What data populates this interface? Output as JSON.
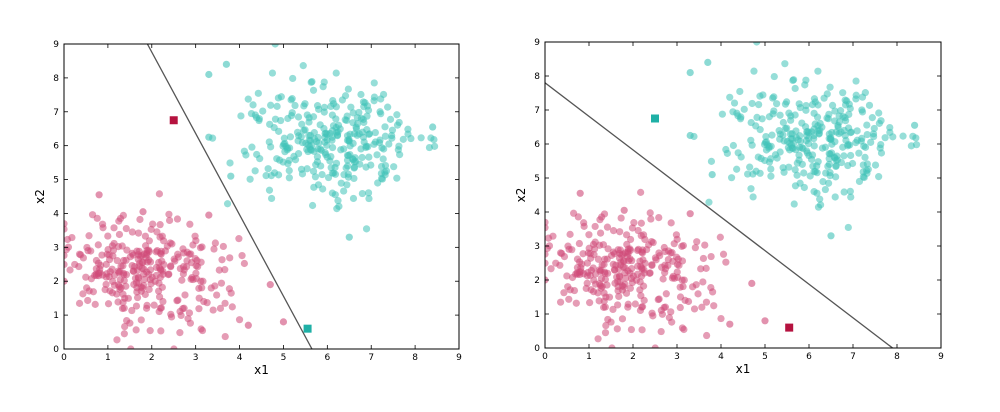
{
  "colors": {
    "class_a": "#cf4a78",
    "class_a_marker": "#b5123f",
    "class_b": "#3fc2b8",
    "class_b_marker": "#1fb0a6",
    "boundary": "#555555",
    "axes": "#000000"
  },
  "chart_data": [
    {
      "type": "scatter",
      "title": "",
      "xlabel": "x1",
      "ylabel": "x2",
      "xlim": [
        0,
        9
      ],
      "ylim": [
        0,
        9
      ],
      "xticks": [
        "0",
        "1",
        "2",
        "3",
        "4",
        "5",
        "6",
        "7",
        "8",
        "9"
      ],
      "yticks": [
        "0",
        "1",
        "2",
        "3",
        "4",
        "5",
        "6",
        "7",
        "8",
        "9"
      ],
      "grid": false,
      "series": [
        {
          "class": "a",
          "color_key": "class_a",
          "cluster": {
            "center": [
              1.9,
              2.3
            ],
            "spread": [
              0.95,
              0.75
            ],
            "count": 300,
            "tilt": -0.35
          },
          "highlights": [
            [
              0.8,
              4.55
            ],
            [
              1.8,
              4.05
            ],
            [
              3.3,
              3.95
            ],
            [
              4.7,
              1.9
            ],
            [
              5.0,
              0.8
            ],
            [
              0.0,
              2.0
            ],
            [
              4.2,
              0.7
            ]
          ]
        },
        {
          "class": "b",
          "color_key": "class_b",
          "cluster": {
            "center": [
              6.1,
              6.1
            ],
            "spread": [
              0.95,
              0.85
            ],
            "count": 300,
            "tilt": -0.3
          },
          "highlights": [
            [
              3.3,
              8.1
            ],
            [
              3.7,
              8.4
            ],
            [
              6.5,
              3.3
            ],
            [
              8.4,
              6.55
            ],
            [
              3.3,
              6.25
            ],
            [
              3.8,
              5.1
            ]
          ]
        }
      ],
      "query_points": [
        {
          "x": 2.5,
          "y": 6.75,
          "class": "a",
          "color_key": "class_a_marker"
        },
        {
          "x": 5.55,
          "y": 0.6,
          "class": "b",
          "color_key": "class_b_marker"
        }
      ],
      "decision_boundary": {
        "x0": 1.9,
        "y0": 9.0,
        "x1": 5.65,
        "y1": 0.0
      }
    },
    {
      "type": "scatter",
      "title": "",
      "xlabel": "x1",
      "ylabel": "x2",
      "xlim": [
        0,
        9
      ],
      "ylim": [
        0,
        9
      ],
      "xticks": [
        "0",
        "1",
        "2",
        "3",
        "4",
        "5",
        "6",
        "7",
        "8",
        "9"
      ],
      "yticks": [
        "0",
        "1",
        "2",
        "3",
        "4",
        "5",
        "6",
        "7",
        "8",
        "9"
      ],
      "grid": false,
      "series": [
        {
          "class": "a",
          "color_key": "class_a",
          "cluster": {
            "center": [
              1.9,
              2.3
            ],
            "spread": [
              0.95,
              0.75
            ],
            "count": 300,
            "tilt": -0.35
          },
          "highlights": [
            [
              0.8,
              4.55
            ],
            [
              1.8,
              4.05
            ],
            [
              3.3,
              3.95
            ],
            [
              4.7,
              1.9
            ],
            [
              5.0,
              0.8
            ],
            [
              0.0,
              2.0
            ],
            [
              4.2,
              0.7
            ]
          ]
        },
        {
          "class": "b",
          "color_key": "class_b",
          "cluster": {
            "center": [
              6.1,
              6.1
            ],
            "spread": [
              0.95,
              0.85
            ],
            "count": 300,
            "tilt": -0.3
          },
          "highlights": [
            [
              3.3,
              8.1
            ],
            [
              3.7,
              8.4
            ],
            [
              6.5,
              3.3
            ],
            [
              8.4,
              6.55
            ],
            [
              3.3,
              6.25
            ],
            [
              3.8,
              5.1
            ]
          ]
        }
      ],
      "query_points": [
        {
          "x": 2.5,
          "y": 6.75,
          "class": "b",
          "color_key": "class_b_marker"
        },
        {
          "x": 5.55,
          "y": 0.6,
          "class": "a",
          "color_key": "class_a_marker"
        }
      ],
      "decision_boundary": {
        "x0": 0.0,
        "y0": 7.8,
        "x1": 7.9,
        "y1": 0.0
      }
    }
  ]
}
